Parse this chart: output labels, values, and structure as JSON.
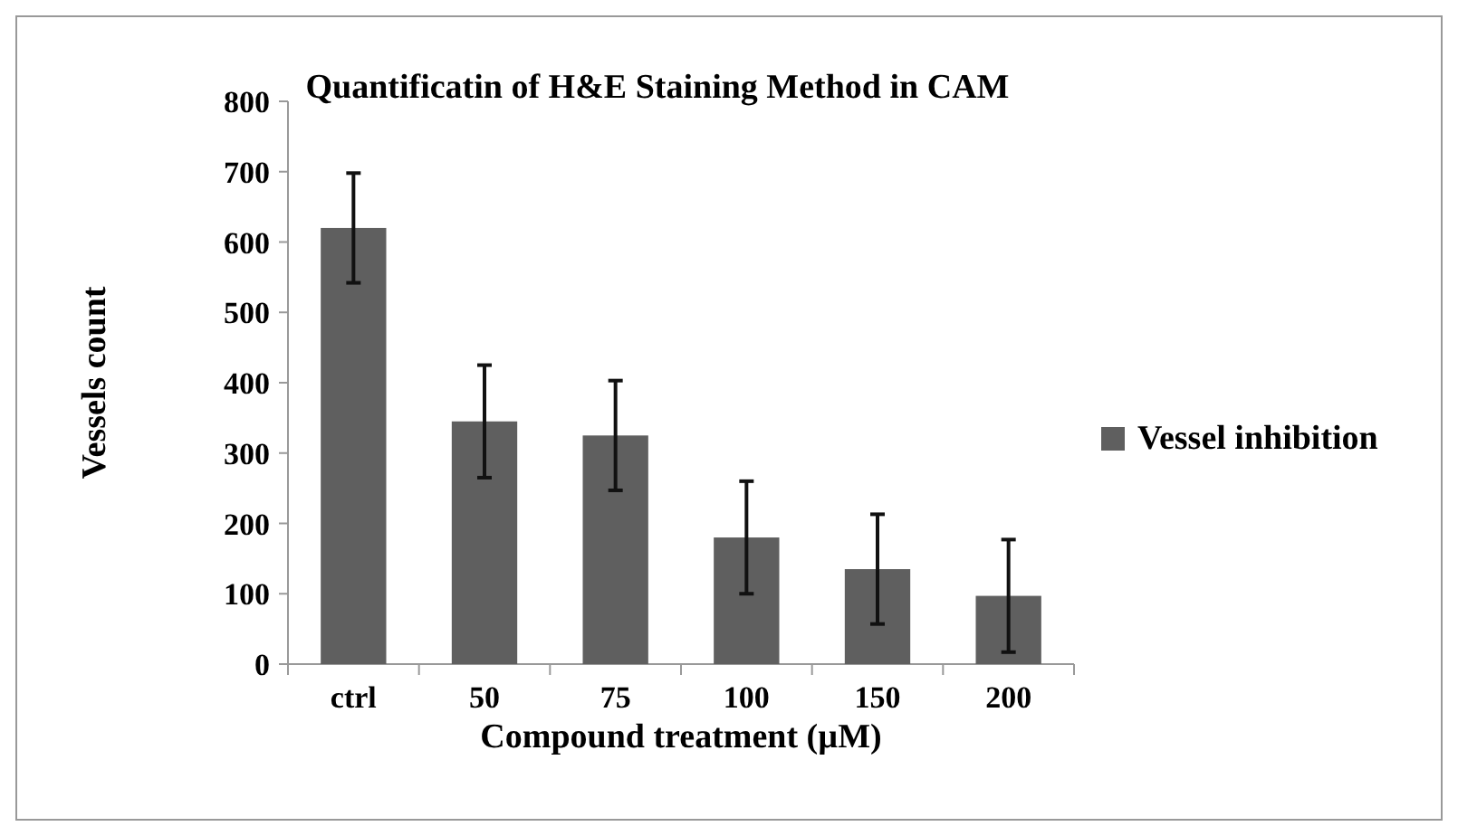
{
  "chart_data": {
    "type": "bar",
    "title": "Quantificatin of H&E Staining Method in CAM",
    "xlabel": "Compound treatment (µM)",
    "ylabel": "Vessels count",
    "categories": [
      "ctrl",
      "50",
      "75",
      "100",
      "150",
      "200"
    ],
    "series": [
      {
        "name": "Vessel inhibition",
        "color": "#5f5f5f",
        "values": [
          620,
          345,
          325,
          180,
          135,
          97
        ],
        "errors": [
          78,
          80,
          78,
          80,
          78,
          80
        ]
      }
    ],
    "ylim": [
      0,
      800
    ],
    "yticks": [
      0,
      100,
      200,
      300,
      400,
      500,
      600,
      700,
      800
    ],
    "legend": "right"
  }
}
